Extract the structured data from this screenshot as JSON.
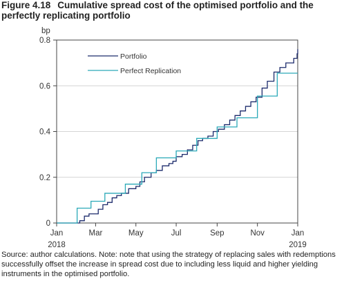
{
  "figure": {
    "number": "Figure 4.18",
    "title": "Cumulative spread cost of the optimised portfolio and the perfectly replicating portfolio",
    "source_note": "Source: author calculations. Note: note that using the strategy of replacing sales with redemptions successfully offset the increase in spread cost due to including less liquid and higher yielding instruments in the optimised portfolio."
  },
  "chart_data": {
    "type": "line",
    "title": "",
    "xlabel": "",
    "ylabel": "bp",
    "ylim": [
      0,
      0.8
    ],
    "xlim": [
      "2018-01-01",
      "2019-01-01"
    ],
    "yticks": [
      "0",
      "0.2",
      "0.4",
      "0.6",
      "0.8"
    ],
    "xticks": [
      {
        "label": "Jan",
        "sublabel": "2018",
        "x": "2018-01-01"
      },
      {
        "label": "Mar",
        "x": "2018-03-01"
      },
      {
        "label": "May",
        "x": "2018-05-01"
      },
      {
        "label": "Jul",
        "x": "2018-07-01"
      },
      {
        "label": "Sep",
        "x": "2018-09-01"
      },
      {
        "label": "Nov",
        "x": "2018-11-01"
      },
      {
        "label": "Jan",
        "sublabel": "2019",
        "x": "2019-01-01"
      }
    ],
    "grid": "horizontal",
    "legend_position": "top-left",
    "series": [
      {
        "name": "Portfolio",
        "color": "#1b2a6b",
        "step": true,
        "points": [
          [
            "2018-01-01",
            0.0
          ],
          [
            "2018-02-05",
            0.01
          ],
          [
            "2018-02-12",
            0.03
          ],
          [
            "2018-02-19",
            0.04
          ],
          [
            "2018-03-05",
            0.06
          ],
          [
            "2018-03-12",
            0.08
          ],
          [
            "2018-03-19",
            0.09
          ],
          [
            "2018-03-26",
            0.11
          ],
          [
            "2018-04-02",
            0.12
          ],
          [
            "2018-04-09",
            0.13
          ],
          [
            "2018-04-20",
            0.15
          ],
          [
            "2018-05-01",
            0.16
          ],
          [
            "2018-05-07",
            0.18
          ],
          [
            "2018-05-14",
            0.2
          ],
          [
            "2018-05-24",
            0.22
          ],
          [
            "2018-06-01",
            0.23
          ],
          [
            "2018-06-10",
            0.25
          ],
          [
            "2018-06-20",
            0.26
          ],
          [
            "2018-06-26",
            0.27
          ],
          [
            "2018-07-01",
            0.29
          ],
          [
            "2018-07-10",
            0.3
          ],
          [
            "2018-07-18",
            0.32
          ],
          [
            "2018-07-26",
            0.34
          ],
          [
            "2018-08-03",
            0.36
          ],
          [
            "2018-08-10",
            0.37
          ],
          [
            "2018-08-18",
            0.38
          ],
          [
            "2018-08-26",
            0.4
          ],
          [
            "2018-09-03",
            0.41
          ],
          [
            "2018-09-12",
            0.43
          ],
          [
            "2018-09-20",
            0.45
          ],
          [
            "2018-09-28",
            0.47
          ],
          [
            "2018-10-06",
            0.49
          ],
          [
            "2018-10-14",
            0.51
          ],
          [
            "2018-10-22",
            0.53
          ],
          [
            "2018-10-30",
            0.55
          ],
          [
            "2018-11-08",
            0.59
          ],
          [
            "2018-11-16",
            0.62
          ],
          [
            "2018-11-26",
            0.66
          ],
          [
            "2018-12-05",
            0.68
          ],
          [
            "2018-12-14",
            0.7
          ],
          [
            "2018-12-26",
            0.72
          ],
          [
            "2018-12-31",
            0.74
          ],
          [
            "2019-01-01",
            0.76
          ]
        ]
      },
      {
        "name": "Perfect Replication",
        "color": "#2aa9b8",
        "step": true,
        "points": [
          [
            "2018-01-01",
            0.0
          ],
          [
            "2018-02-01",
            0.065
          ],
          [
            "2018-02-22",
            0.095
          ],
          [
            "2018-03-15",
            0.13
          ],
          [
            "2018-04-15",
            0.17
          ],
          [
            "2018-05-10",
            0.22
          ],
          [
            "2018-06-01",
            0.285
          ],
          [
            "2018-07-01",
            0.315
          ],
          [
            "2018-08-01",
            0.37
          ],
          [
            "2018-09-01",
            0.42
          ],
          [
            "2018-10-01",
            0.46
          ],
          [
            "2018-11-01",
            0.555
          ],
          [
            "2018-12-01",
            0.655
          ],
          [
            "2019-01-01",
            0.655
          ]
        ]
      }
    ]
  }
}
